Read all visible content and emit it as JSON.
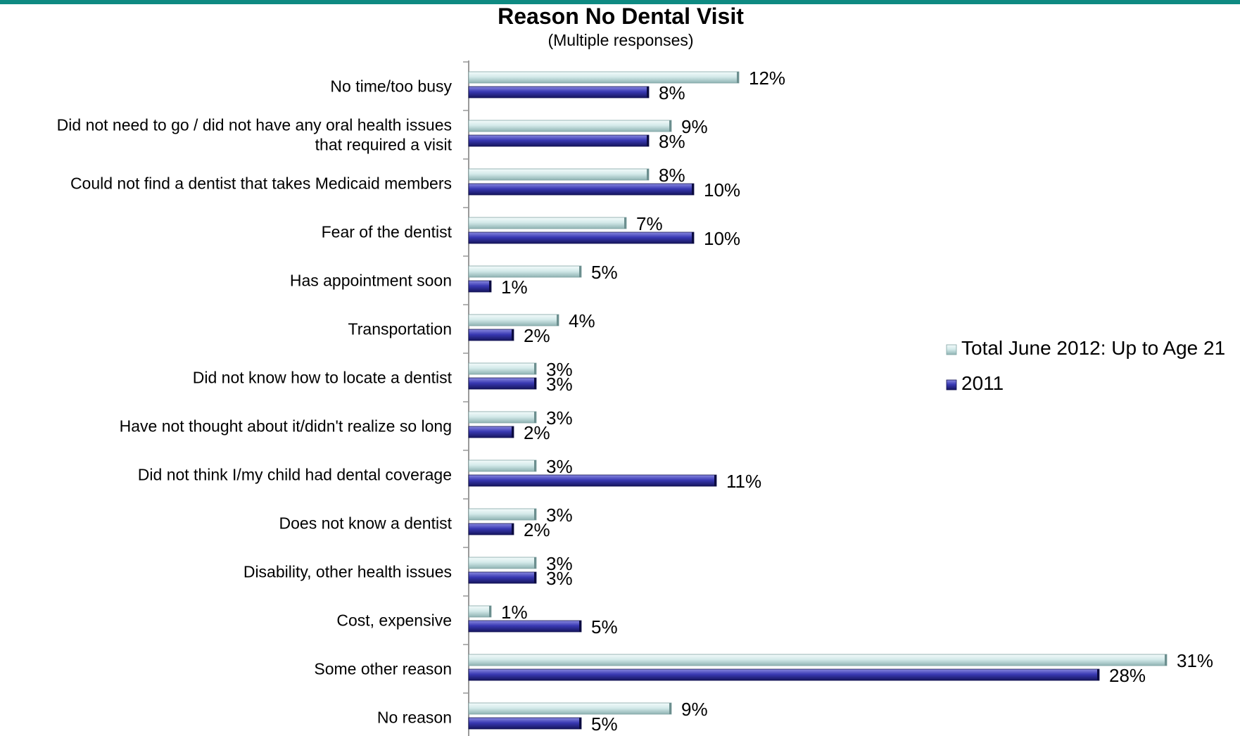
{
  "chart_data": {
    "type": "bar",
    "orientation": "horizontal",
    "title": "Reason No Dental Visit",
    "subtitle": "(Multiple responses)",
    "categories": [
      [
        "No time/too busy"
      ],
      [
        "Did not need to go / did not have any oral health issues",
        "that required a visit"
      ],
      [
        "Could not find a dentist that takes Medicaid members"
      ],
      [
        "Fear of the dentist"
      ],
      [
        "Has appointment soon"
      ],
      [
        "Transportation"
      ],
      [
        "Did not know how to locate a dentist"
      ],
      [
        "Have not thought about it/didn't realize so long"
      ],
      [
        "Did not think I/my child had dental coverage"
      ],
      [
        "Does not know a dentist"
      ],
      [
        "Disability, other health issues"
      ],
      [
        "Cost, expensive"
      ],
      [
        "Some other reason"
      ],
      [
        "No reason"
      ]
    ],
    "series": [
      {
        "name": "Total June 2012: Up to Age 21",
        "color": "#cfe6e6",
        "values": [
          12,
          9,
          8,
          7,
          5,
          4,
          3,
          3,
          3,
          3,
          3,
          1,
          31,
          9
        ],
        "labels": [
          "12%",
          "9%",
          "8%",
          "7%",
          "5%",
          "4%",
          "3%",
          "3%",
          "3%",
          "3%",
          "3%",
          "1%",
          "31%",
          "9%"
        ]
      },
      {
        "name": "2011",
        "color": "#3333aa",
        "values": [
          8,
          8,
          10,
          10,
          1,
          2,
          3,
          2,
          11,
          2,
          3,
          5,
          28,
          5
        ],
        "labels": [
          "8%",
          "8%",
          "10%",
          "10%",
          "1%",
          "2%",
          "3%",
          "2%",
          "11%",
          "2%",
          "3%",
          "5%",
          "28%",
          "5%"
        ]
      }
    ],
    "xlim": [
      0,
      31
    ],
    "grid": false,
    "legend_position": "right"
  }
}
